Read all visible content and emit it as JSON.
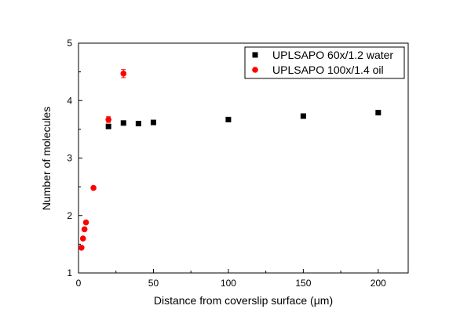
{
  "chart_data": {
    "type": "scatter",
    "title": "",
    "xlabel": "Distance from coverslip surface (μm)",
    "ylabel": "Number of molecules",
    "xlim": [
      0,
      220
    ],
    "ylim": [
      1,
      5
    ],
    "xticks": [
      0,
      50,
      100,
      150,
      200
    ],
    "yticks": [
      1,
      2,
      3,
      4,
      5
    ],
    "grid": false,
    "legend_position": "top-right",
    "series": [
      {
        "name": "UPLSAPO 60x/1.2 water",
        "marker": "square",
        "color": "#000000",
        "x": [
          20,
          30,
          40,
          50,
          100,
          150,
          200
        ],
        "y": [
          3.55,
          3.61,
          3.6,
          3.62,
          3.67,
          3.73,
          3.79
        ],
        "yerr": [
          0.02,
          0.02,
          0.02,
          0.02,
          0.02,
          0.02,
          0.02
        ]
      },
      {
        "name": "UPLSAPO 100x/1.4 oil",
        "marker": "circle",
        "color": "#ff0000",
        "x": [
          2,
          3,
          4,
          5,
          10,
          20,
          30
        ],
        "y": [
          1.44,
          1.6,
          1.76,
          1.88,
          2.48,
          3.67,
          4.47
        ],
        "yerr": [
          0.02,
          0.02,
          0.02,
          0.02,
          0.02,
          0.05,
          0.07
        ]
      }
    ]
  }
}
